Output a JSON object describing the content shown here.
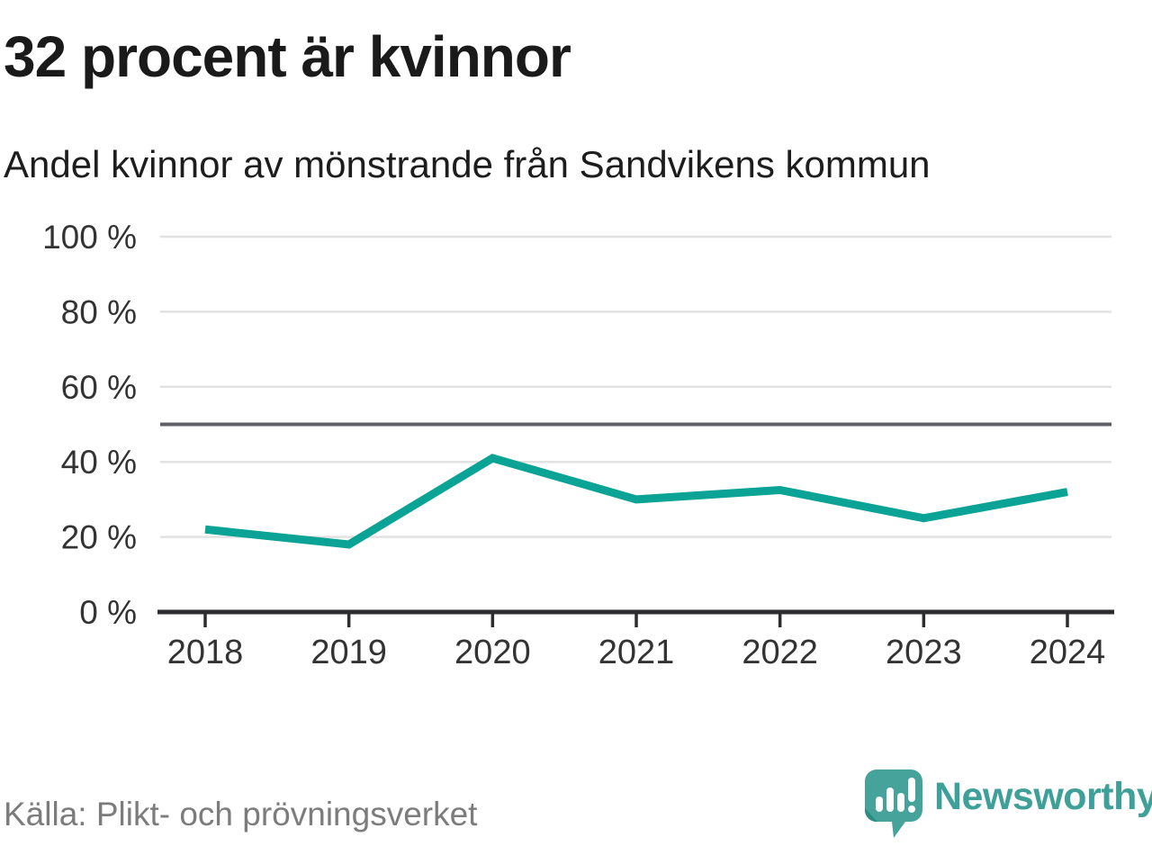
{
  "header": {
    "title": "32 procent är kvinnor",
    "subtitle": "Andel kvinnor av mönstrande från Sandvikens kommun"
  },
  "chart_data": {
    "type": "line",
    "title": "32 procent är kvinnor",
    "subtitle": "Andel kvinnor av mönstrande från Sandvikens kommun",
    "categories": [
      "2018",
      "2019",
      "2020",
      "2021",
      "2022",
      "2023",
      "2024"
    ],
    "series": [
      {
        "name": "Andel kvinnor av mönstrande",
        "values": [
          22,
          18,
          41,
          30,
          32.5,
          25,
          32
        ]
      }
    ],
    "ylim": [
      0,
      100
    ],
    "ytick_values": [
      0,
      20,
      40,
      60,
      80,
      100
    ],
    "ytick_labels": [
      "0 %",
      "20 %",
      "40 %",
      "60 %",
      "80 %",
      "100 %"
    ],
    "reference_line_value": 50,
    "grid": true,
    "legend": false
  },
  "colors": {
    "accent_line": "#0aa396",
    "reference_line": "#5f6066",
    "gridline": "#e2e2e2",
    "axis": "#2d2d30",
    "tick_label": "#333333",
    "title_text": "#1a1a1a",
    "muted_text": "#7c7c7c",
    "brand_teal": "#3fa099",
    "logo_fill": "#46a39c",
    "logo_fold": "#2e8c86"
  },
  "footer": {
    "source": "Källa: Plikt- och prövningsverket",
    "brand": "Newsworthy"
  }
}
